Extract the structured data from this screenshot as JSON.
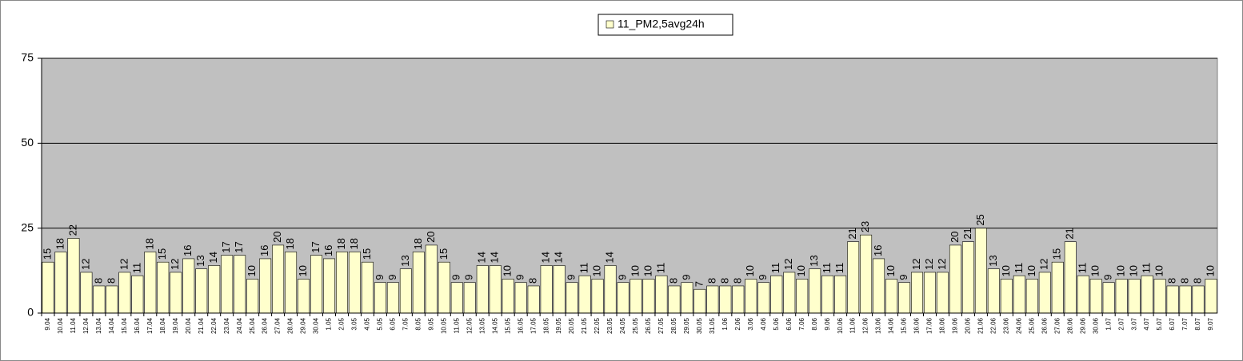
{
  "chart_data": {
    "type": "bar",
    "categories": [
      "9.04",
      "10.04",
      "11.04",
      "12.04",
      "13.04",
      "14.04",
      "15.04",
      "16.04",
      "17.04",
      "18.04",
      "19.04",
      "20.04",
      "21.04",
      "22.04",
      "23.04",
      "24.04",
      "25.04",
      "26.04",
      "27.04",
      "28.04",
      "29.04",
      "30.04",
      "1.05",
      "2.05",
      "3.05",
      "4.05",
      "5.05",
      "6.05",
      "7.05",
      "8.05",
      "9.05",
      "10.05",
      "11.05",
      "12.05",
      "13.05",
      "14.05",
      "15.05",
      "16.05",
      "17.05",
      "18.05",
      "19.05",
      "20.05",
      "21.05",
      "22.05",
      "23.05",
      "24.05",
      "25.05",
      "26.05",
      "27.05",
      "28.05",
      "29.05",
      "30.05",
      "31.05",
      "1.06",
      "2.06",
      "3.06",
      "4.06",
      "5.06",
      "6.06",
      "7.06",
      "8.06",
      "9.06",
      "10.06",
      "11.06",
      "12.06",
      "13.06",
      "14.06",
      "15.06",
      "16.06",
      "17.06",
      "18.06",
      "19.06",
      "20.06",
      "21.06",
      "22.06",
      "23.06",
      "24.06",
      "25.06",
      "26.06",
      "27.06",
      "28.06",
      "29.06",
      "30.06",
      "1.07",
      "2.07",
      "3.07",
      "4.07",
      "5.07",
      "6.07",
      "7.07",
      "8.07",
      "9.07"
    ],
    "series": [
      {
        "name": "11_PM2,5avg24h",
        "color": "#ffffcc",
        "values": [
          15,
          18,
          22,
          12,
          8,
          8,
          12,
          11,
          18,
          15,
          12,
          16,
          13,
          14,
          17,
          17,
          10,
          16,
          20,
          18,
          10,
          17,
          16,
          18,
          18,
          15,
          9,
          9,
          13,
          18,
          20,
          15,
          9,
          9,
          14,
          14,
          10,
          9,
          8,
          14,
          14,
          9,
          11,
          10,
          14,
          9,
          10,
          10,
          11,
          8,
          9,
          7,
          8,
          8,
          8,
          10,
          9,
          11,
          12,
          10,
          13,
          11,
          11,
          21,
          23,
          16,
          10,
          9,
          12,
          12,
          12,
          20,
          21,
          25,
          13,
          10,
          11,
          10,
          12,
          15,
          21,
          11,
          10,
          9,
          10,
          10,
          11,
          10,
          8,
          8,
          8,
          10
        ]
      }
    ],
    "ylim": [
      0,
      75
    ],
    "yticks": [
      0,
      25,
      50,
      75
    ],
    "grid": true,
    "legend": "top"
  }
}
